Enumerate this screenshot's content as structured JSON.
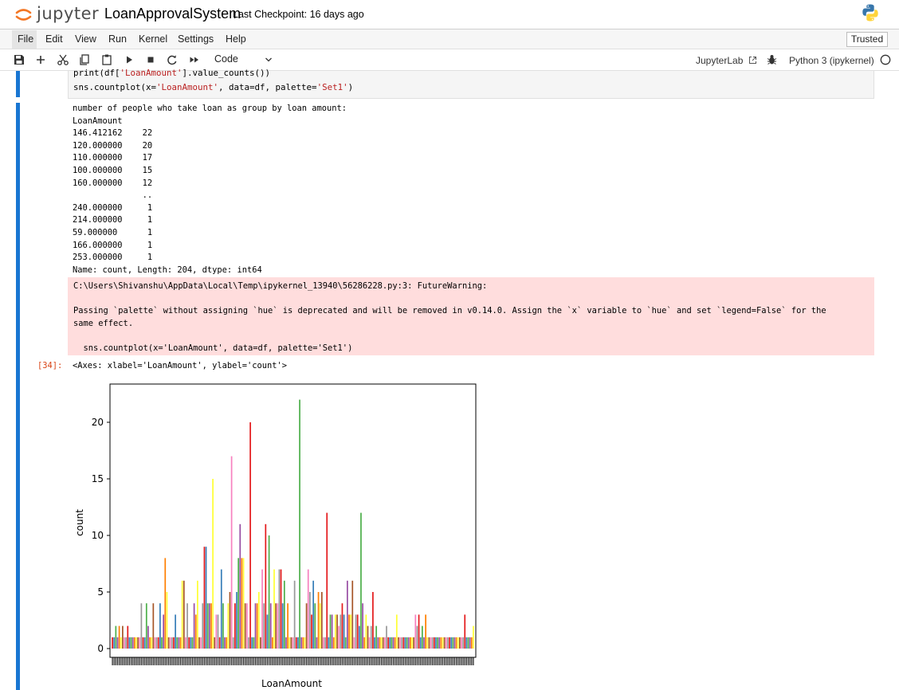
{
  "header": {
    "logo_text": "jupyter",
    "notebook_title": "LoanApprovalSystem",
    "checkpoint": "Last Checkpoint: 16 days ago",
    "logo_icon": "jupyter-orbit-icon",
    "kernel_logo_icon": "python-logo-icon"
  },
  "menubar": {
    "items": [
      "File",
      "Edit",
      "View",
      "Run",
      "Kernel",
      "Settings",
      "Help"
    ],
    "trusted_label": "Trusted"
  },
  "toolbar": {
    "icons": [
      "save-icon",
      "add-cell-icon",
      "cut-icon",
      "copy-icon",
      "paste-icon",
      "run-icon",
      "stop-icon",
      "restart-icon",
      "fast-forward-icon"
    ],
    "cell_type": "Code",
    "jupyterlab_label": "JupyterLab",
    "kernel_label": "Python 3 (ipykernel)",
    "colors": {
      "accent": "#1976d2",
      "warning_bg": "#ffdddd",
      "prompt": "#d84315"
    }
  },
  "code_cell": {
    "line1_pre": "print(df[",
    "line1_str": "'LoanAmount'",
    "line1_post": "].value_counts())",
    "line2_fn": "sns.countplot",
    "line2_a": "(x=",
    "line2_str1": "'LoanAmount'",
    "line2_b": ", data=df, palette=",
    "line2_str2": "'Set1'",
    "line2_c": ")"
  },
  "output": {
    "stdout": "number of people who take loan as group by loan amount:\nLoanAmount\n146.412162    22\n120.000000    20\n110.000000    17\n100.000000    15\n160.000000    12\n              ..\n240.000000     1\n214.000000     1\n59.000000      1\n166.000000     1\n253.000000     1\nName: count, Length: 204, dtype: int64",
    "warning_line1": "C:\\Users\\Shivanshu\\AppData\\Local\\Temp\\ipykernel_13940\\56286228.py:3: FutureWarning:",
    "warning_line2": "Passing `palette` without assigning `hue` is deprecated and will be removed in v0.14.0. Assign the `x` variable to `hue` and set `legend=False` for the",
    "warning_line3": "same effect.",
    "warning_line4": "  sns.countplot(x='LoanAmount', data=df, palette='Set1')",
    "exec_prompt": "[34]:",
    "axes_repr": "<Axes: xlabel='LoanAmount', ylabel='count'>"
  },
  "chart_data": {
    "type": "bar",
    "xlabel": "LoanAmount",
    "ylabel": "count",
    "ylim": [
      0,
      23
    ],
    "yticks": [
      0,
      5,
      10,
      15,
      20
    ],
    "legend": "none",
    "grid": false,
    "palette": [
      "#e41a1c",
      "#377eb8",
      "#4daf4a",
      "#984ea3",
      "#ff7f00",
      "#ffff33",
      "#a65628",
      "#f781bf",
      "#999999"
    ],
    "values": [
      1,
      1,
      2,
      1,
      2,
      1,
      2,
      1,
      1,
      2,
      1,
      1,
      1,
      1,
      1,
      1,
      1,
      4,
      1,
      1,
      4,
      2,
      1,
      1,
      4,
      1,
      1,
      1,
      4,
      1,
      3,
      8,
      5,
      1,
      1,
      1,
      1,
      3,
      1,
      1,
      1,
      6,
      6,
      1,
      4,
      1,
      1,
      1,
      4,
      3,
      6,
      1,
      1,
      4,
      9,
      9,
      4,
      4,
      4,
      15,
      1,
      3,
      3,
      1,
      7,
      4,
      1,
      1,
      4,
      5,
      17,
      1,
      4,
      5,
      8,
      11,
      8,
      8,
      4,
      4,
      1,
      20,
      1,
      1,
      4,
      4,
      5,
      1,
      7,
      4,
      11,
      3,
      10,
      4,
      1,
      7,
      4,
      4,
      7,
      7,
      4,
      6,
      1,
      4,
      1,
      1,
      1,
      6,
      1,
      1,
      22,
      1,
      1,
      1,
      4,
      7,
      5,
      3,
      6,
      4,
      1,
      5,
      4,
      5,
      1,
      1,
      12,
      1,
      3,
      3,
      1,
      3,
      3,
      2,
      3,
      4,
      3,
      1,
      6,
      3,
      3,
      6,
      1,
      3,
      3,
      2,
      12,
      4,
      1,
      3,
      2,
      1,
      2,
      5,
      1,
      2,
      1,
      1,
      1,
      1,
      1,
      2,
      1,
      1,
      1,
      1,
      1,
      3,
      1,
      1,
      1,
      1,
      1,
      1,
      1,
      1,
      1,
      1,
      3,
      2,
      3,
      1,
      2,
      1,
      3,
      1,
      1,
      1,
      1,
      1,
      1,
      1,
      1,
      1,
      1,
      1,
      1,
      1,
      1,
      1,
      1,
      1,
      1,
      1,
      1,
      1,
      1,
      3,
      1,
      1,
      1,
      1,
      2
    ]
  }
}
